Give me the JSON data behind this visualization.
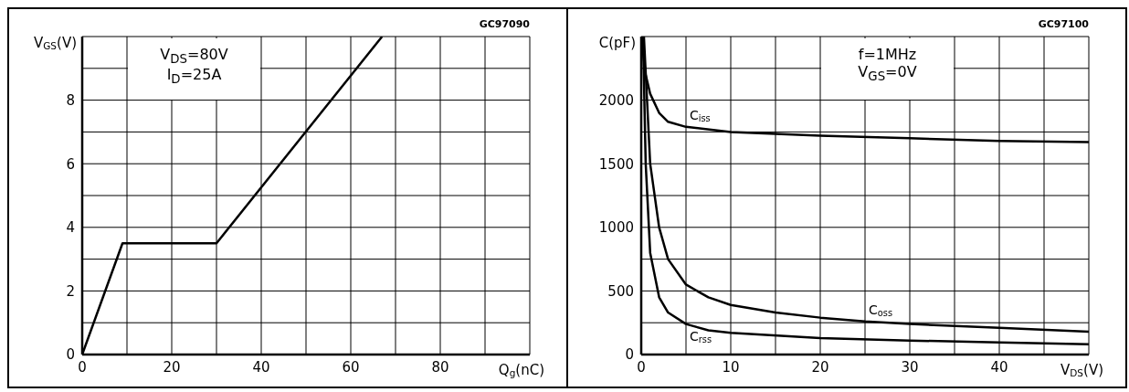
{
  "chart_data": [
    {
      "type": "line",
      "xlabel": "Q$_{g}$(nC)",
      "ylabel": "V$_{GS}$(V)",
      "annotations": [
        "GC97090",
        "V$_{DS}$=80V",
        "I$_{D}$=25A"
      ],
      "xlim": [
        0,
        100
      ],
      "ylim": [
        0,
        10
      ],
      "xticks": [
        0,
        {
          "value": 10,
          "label": null
        },
        20,
        {
          "value": 30,
          "label": null
        },
        40,
        {
          "value": 50,
          "label": null
        },
        60,
        {
          "value": 70,
          "label": null
        },
        80,
        {
          "value": 90,
          "label": null
        },
        {
          "value": 100,
          "label": null
        }
      ],
      "yticks": [
        0,
        {
          "value": 1,
          "label": null
        },
        2,
        {
          "value": 3,
          "label": null
        },
        4,
        {
          "value": 5,
          "label": null
        },
        6,
        {
          "value": 7,
          "label": null
        },
        8,
        {
          "value": 9,
          "label": null
        },
        {
          "value": 10,
          "label": null
        }
      ],
      "grid": true,
      "line_style": "solid",
      "series": [
        {
          "color": "#000000",
          "x": [
            0,
            9,
            30,
            67
          ],
          "values": [
            0,
            3.5,
            3.5,
            10
          ]
        }
      ]
    },
    {
      "type": "line",
      "xlabel": "V$_{DS}$(V)",
      "ylabel": "C(pF)",
      "annotations": [
        "GC97100",
        "f=1MHz",
        "V$_{GS}$=0V"
      ],
      "xlim": [
        0,
        50
      ],
      "ylim": [
        0,
        2500
      ],
      "xticks": [
        0,
        {
          "value": 5,
          "label": null
        },
        10,
        {
          "value": 15,
          "label": null
        },
        20,
        {
          "value": 25,
          "label": null
        },
        30,
        {
          "value": 35,
          "label": null
        },
        40,
        {
          "value": 45,
          "label": null
        },
        {
          "value": 50,
          "label": null
        }
      ],
      "yticks": [
        0,
        {
          "value": 250,
          "label": null
        },
        500,
        {
          "value": 750,
          "label": null
        },
        1000,
        {
          "value": 1250,
          "label": null
        },
        1500,
        {
          "value": 1750,
          "label": null
        },
        2000,
        {
          "value": 2250,
          "label": null
        },
        {
          "value": 2500,
          "label": null
        }
      ],
      "grid": true,
      "line_style": "solid",
      "series": [
        {
          "name": "C$_{iss}$",
          "color": "#000000",
          "x": [
            0,
            0.5,
            1,
            2,
            3,
            5,
            10,
            20,
            30,
            40,
            50
          ],
          "values": [
            2500,
            2200,
            2050,
            1900,
            1830,
            1790,
            1750,
            1720,
            1700,
            1680,
            1670
          ]
        },
        {
          "name": "C$_{oss}$",
          "color": "#000000",
          "x": [
            0.3,
            1,
            2,
            3,
            5,
            7.5,
            10,
            15,
            20,
            25,
            30,
            40,
            50
          ],
          "values": [
            2500,
            1500,
            1000,
            750,
            550,
            450,
            390,
            330,
            290,
            260,
            240,
            210,
            180
          ]
        },
        {
          "name": "C$_{rss}$",
          "color": "#000000",
          "x": [
            0.2,
            0.5,
            1,
            2,
            3,
            5,
            7.5,
            10,
            20,
            30,
            40,
            50
          ],
          "values": [
            2500,
            1500,
            800,
            450,
            330,
            240,
            190,
            170,
            130,
            110,
            95,
            80
          ]
        }
      ]
    }
  ]
}
